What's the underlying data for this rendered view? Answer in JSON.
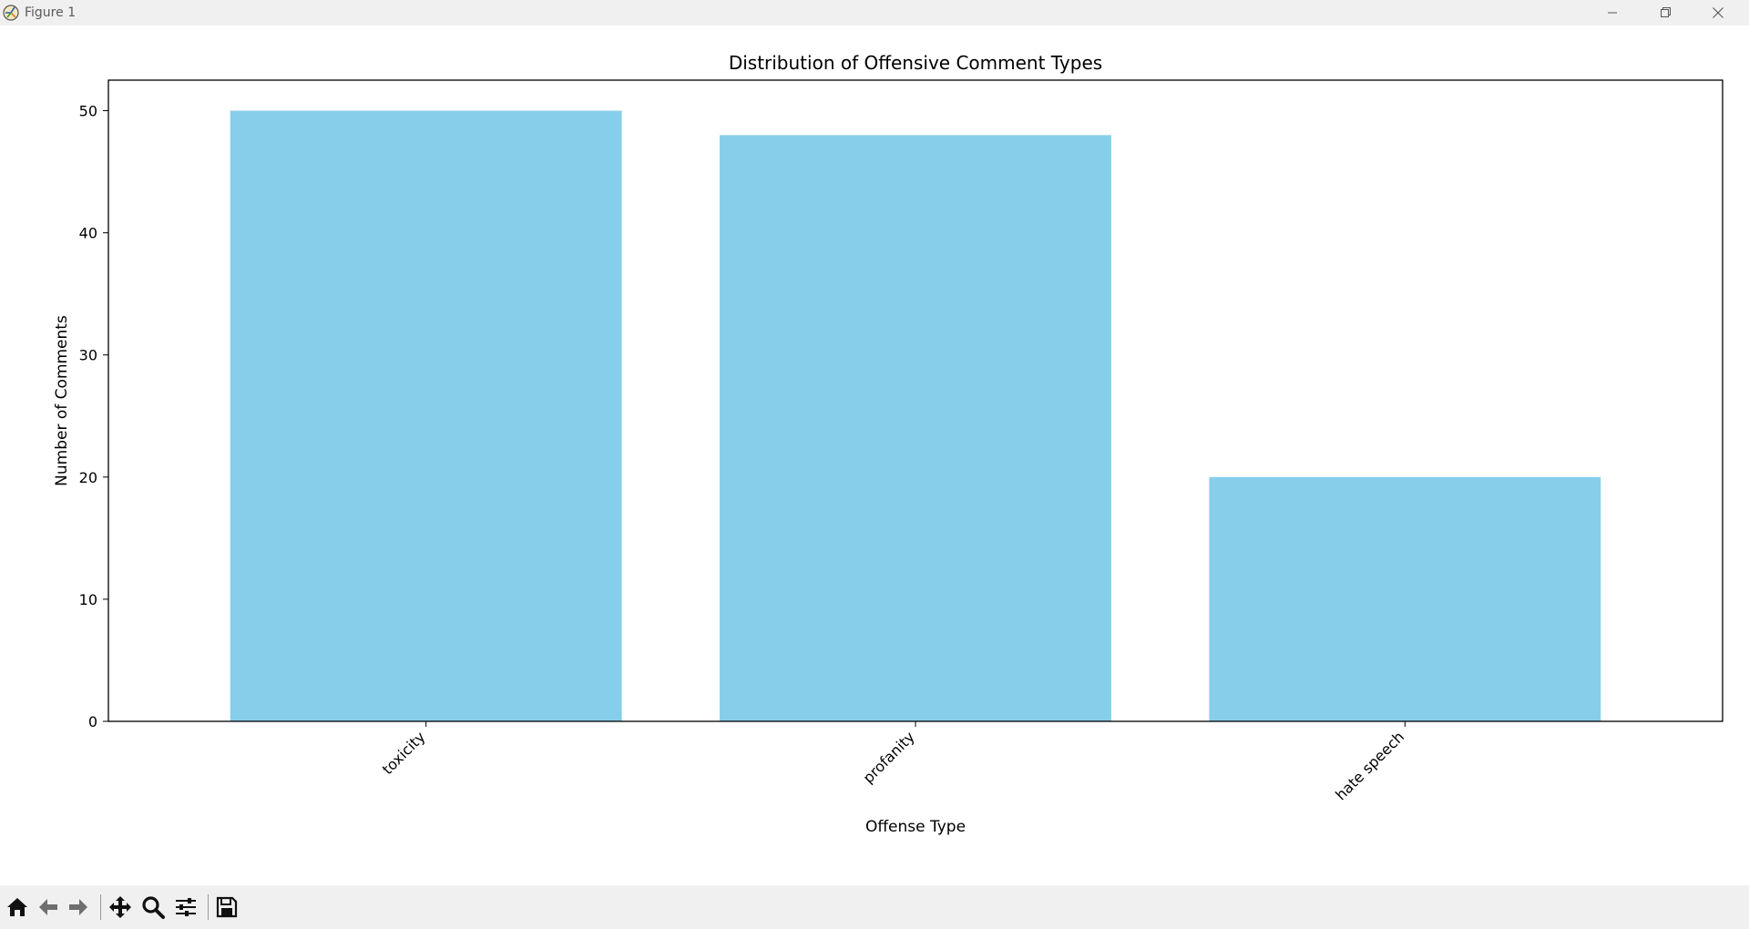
{
  "window": {
    "title": "Figure 1",
    "icons": [
      "app-icon",
      "minimize-icon",
      "maximize-icon",
      "close-icon"
    ]
  },
  "chart_data": {
    "type": "bar",
    "title": "Distribution of Offensive Comment Types",
    "xlabel": "Offense Type",
    "ylabel": "Number of Comments",
    "categories": [
      "toxicity",
      "profanity",
      "hate speech"
    ],
    "values": [
      50,
      48,
      20
    ],
    "ylim": [
      0,
      52.5
    ],
    "yticks": [
      0,
      10,
      20,
      30,
      40,
      50
    ],
    "xtick_rotation": 45,
    "bar_color": "#87ceeb",
    "grid": false
  },
  "toolbar": {
    "icons": [
      "home-icon",
      "back-icon",
      "forward-icon",
      "pan-icon",
      "zoom-icon",
      "configure-subplots-icon",
      "save-icon"
    ]
  }
}
